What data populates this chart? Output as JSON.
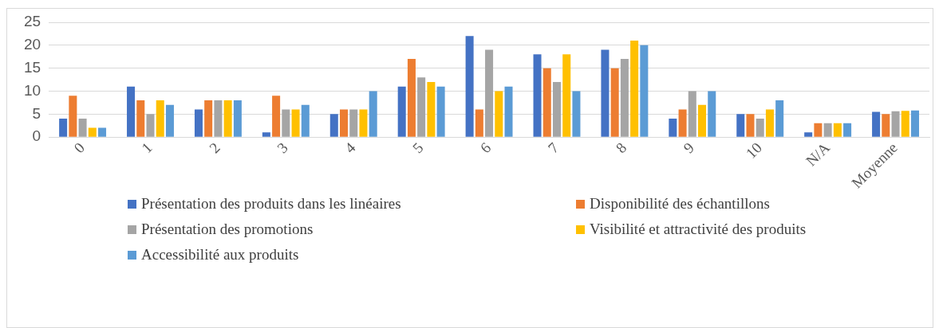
{
  "chart_data": {
    "type": "bar",
    "categories": [
      "0",
      "1",
      "2",
      "3",
      "4",
      "5",
      "6",
      "7",
      "8",
      "9",
      "10",
      "N/A",
      "Moyenne"
    ],
    "series": [
      {
        "name": "Présentation des produits dans les linéaires",
        "color": "#4472c4",
        "values": [
          4,
          11,
          6,
          1,
          5,
          11,
          22,
          18,
          19,
          4,
          5,
          1,
          5.5
        ]
      },
      {
        "name": "Disponibilité des échantillons",
        "color": "#ed7d31",
        "values": [
          9,
          8,
          8,
          9,
          6,
          17,
          6,
          15,
          15,
          6,
          5,
          3,
          5
        ]
      },
      {
        "name": "Présentation des promotions",
        "color": "#a5a5a5",
        "values": [
          4,
          5,
          8,
          6,
          6,
          13,
          19,
          12,
          17,
          10,
          4,
          3,
          5.6
        ]
      },
      {
        "name": "Visibilité et attractivité des produits",
        "color": "#ffc000",
        "values": [
          2,
          8,
          8,
          6,
          6,
          12,
          10,
          18,
          21,
          7,
          6,
          3,
          5.7
        ]
      },
      {
        "name": "Accessibilité aux produits",
        "color": "#5b9bd5",
        "values": [
          2,
          7,
          8,
          7,
          10,
          11,
          11,
          10,
          20,
          10,
          8,
          3,
          5.8
        ]
      }
    ],
    "ylim": [
      0,
      25
    ],
    "yticks": [
      0,
      5,
      10,
      15,
      20,
      25
    ],
    "grid": "y",
    "legend": "bottom"
  }
}
